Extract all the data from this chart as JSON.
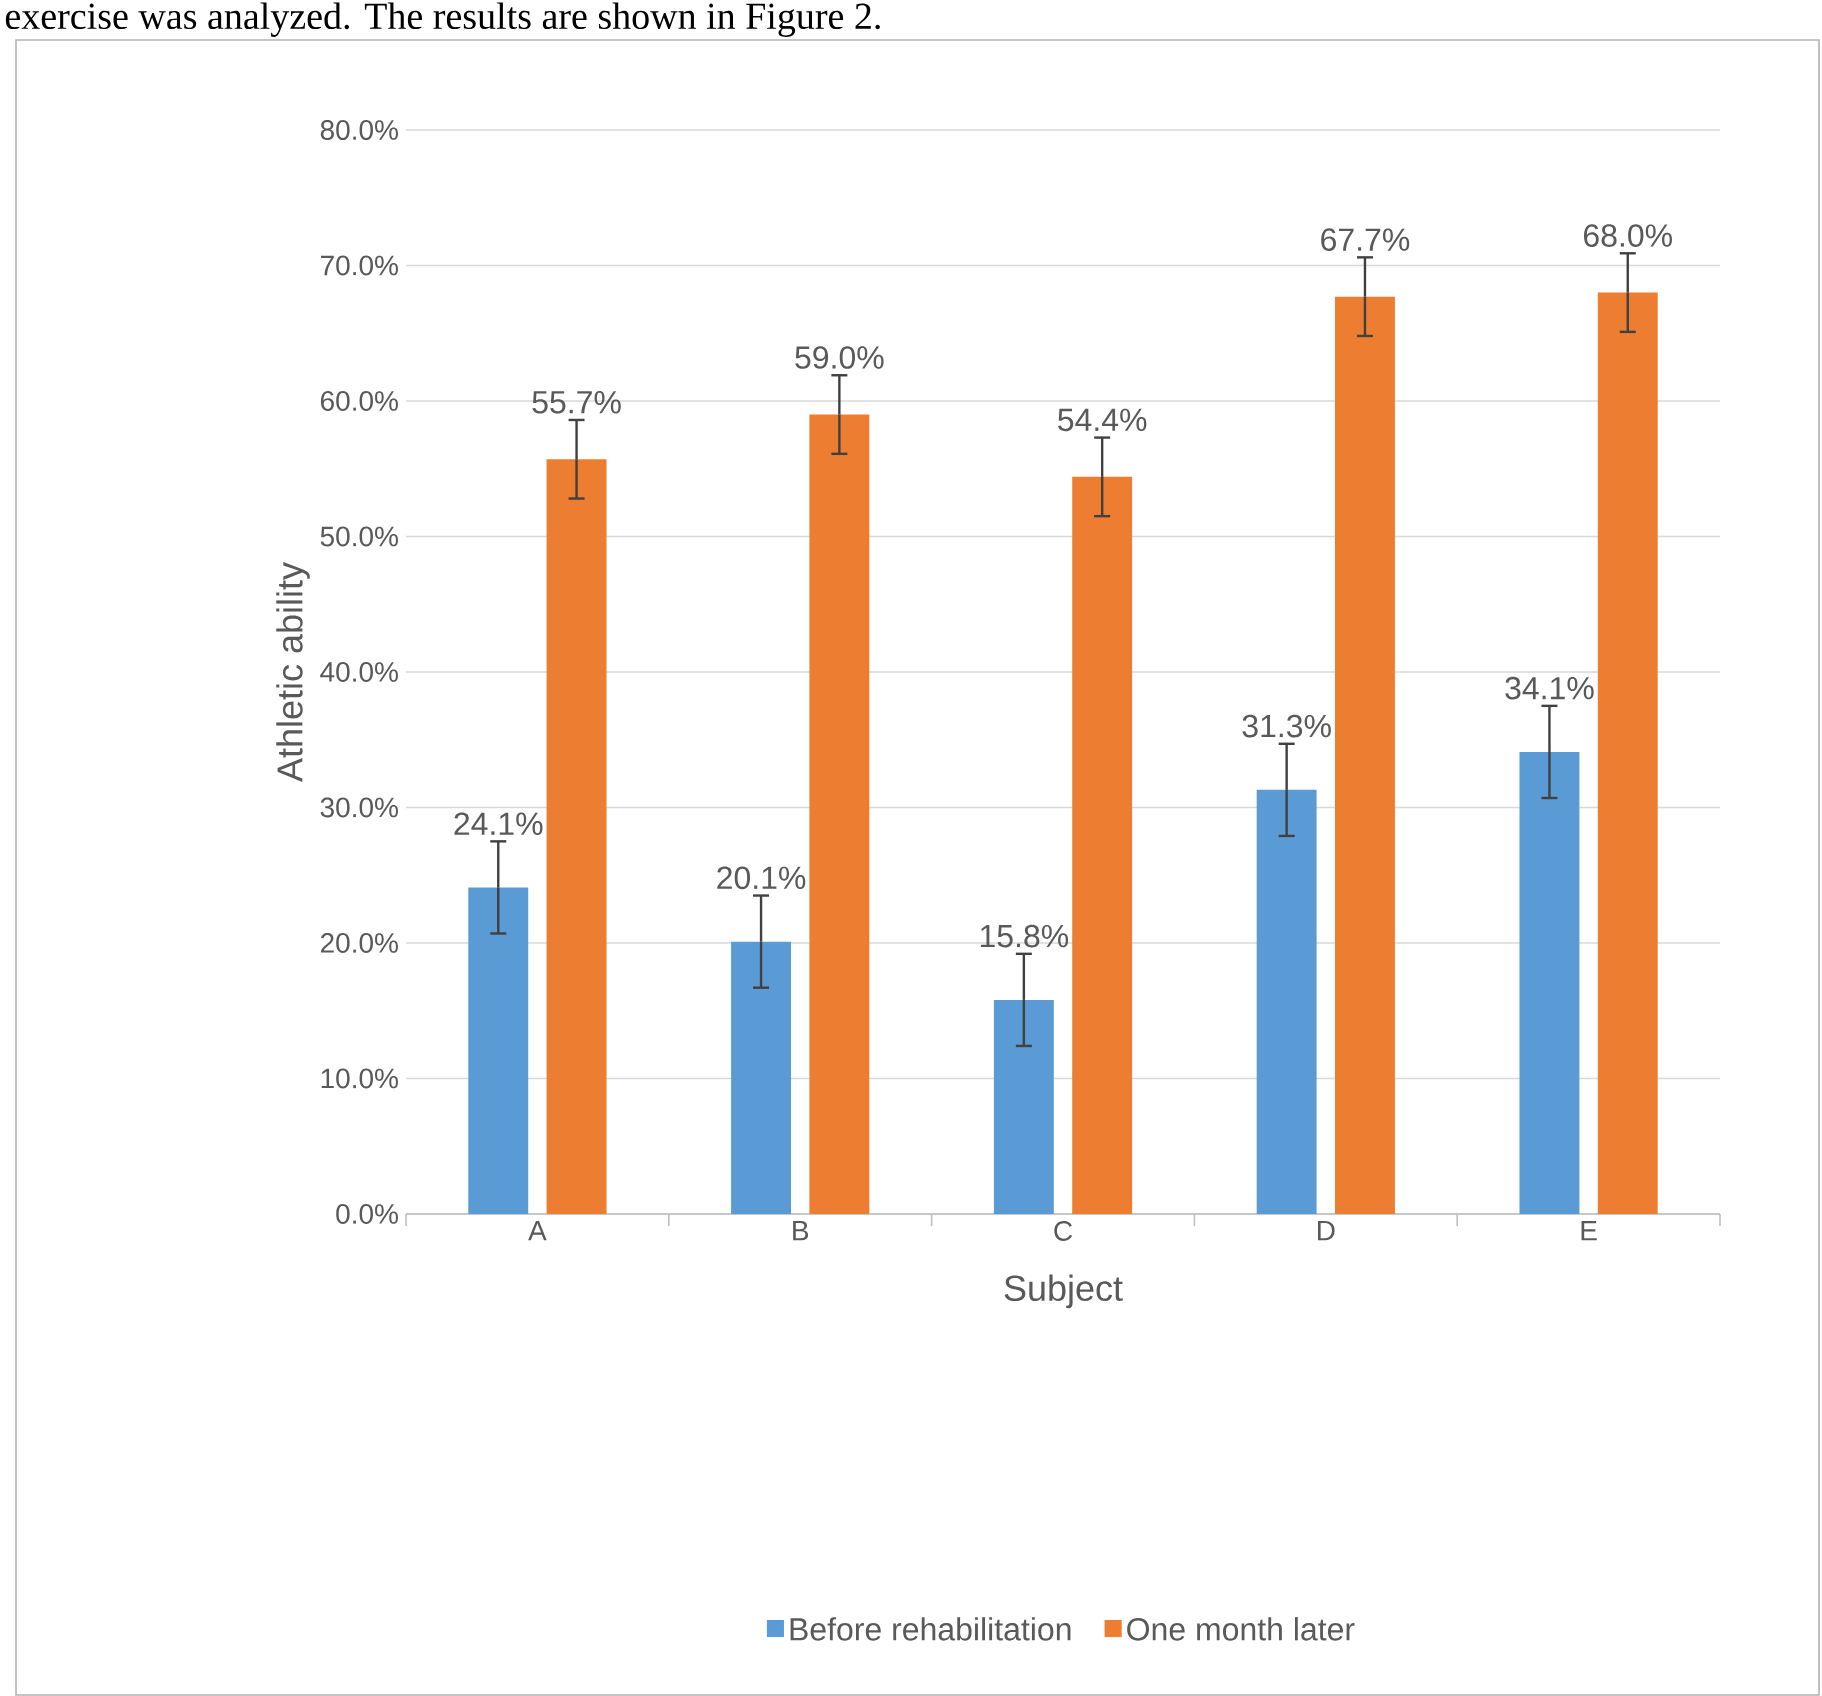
{
  "chart_data": {
    "type": "bar",
    "xlabel": "Subject",
    "ylabel": "Athletic ability",
    "annotations": [
      "exercise was analyzed. The results are shown in Figure 2."
    ],
    "categories": [
      "A",
      "B",
      "C",
      "D",
      "E"
    ],
    "series": [
      {
        "name": "Before rehabilitation",
        "color": "#5b9bd5",
        "values": [
          24.1,
          20.1,
          15.8,
          31.3,
          34.1
        ],
        "errors": [
          3.4,
          3.4,
          3.4,
          3.4,
          3.4
        ],
        "value_labels": [
          "24.1%",
          "20.1%",
          "15.8%",
          "31.3%",
          "34.1%"
        ]
      },
      {
        "name": "One month later",
        "color": "#ed7d31",
        "values": [
          55.7,
          59.0,
          54.4,
          67.7,
          68.0
        ],
        "errors": [
          2.9,
          2.9,
          2.9,
          2.9,
          2.9
        ],
        "value_labels": [
          "55.7%",
          "59.0%",
          "54.4%",
          "67.7%",
          "68.0%"
        ]
      }
    ],
    "ylim": [
      0,
      80
    ],
    "yticks": [
      {
        "value": 0,
        "label": "0.0%"
      },
      {
        "value": 10,
        "label": "10.0%"
      },
      {
        "value": 20,
        "label": "20.0%"
      },
      {
        "value": 30,
        "label": "30.0%"
      },
      {
        "value": 40,
        "label": "40.0%"
      },
      {
        "value": 50,
        "label": "50.0%"
      },
      {
        "value": 60,
        "label": "60.0%"
      },
      {
        "value": 70,
        "label": "70.0%"
      },
      {
        "value": 80,
        "label": "80.0%"
      }
    ],
    "grid": "y",
    "legend": "bottom"
  }
}
